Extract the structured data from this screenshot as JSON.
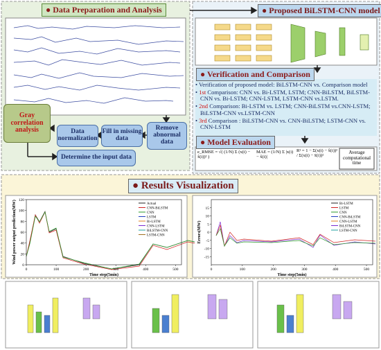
{
  "data_preparation": {
    "title": "Data Preparation and Analysis",
    "steps": {
      "gray": "Gray correlation analysis",
      "normalization": "Data normalization",
      "fill": "Fill in missing data",
      "remove": "Remove abnormal data",
      "determine": "Determine the input data"
    }
  },
  "model": {
    "title": "Proposed BiLSTM-CNN model"
  },
  "verification": {
    "title": "Verification and Comparison",
    "items": [
      {
        "label": "",
        "text": "Verification of proposed model: BiLSTM-CNN vs. Comparison model"
      },
      {
        "label": "1st",
        "text": "Comparison: CNN vs. Bi-LSTM, LSTM; CNN-BiLSTM, BiLSTM-CNN vs. Bi-LSTM;  CNN-LSTM, LSTM-CNN vs.LSTM."
      },
      {
        "label": "2nd",
        "text": "Comparison: Bi-LSTM vs. LSTM; CNN-BiLSTM vs.CNN-LSTM; BiLSTM-CNN vs.LSTM-CNN"
      },
      {
        "label": "3rd",
        "text": "Comparison : BiLSTM-CNN vs. CNN-BiLSTM; LSTM-CNN vs. CNN-LSTM"
      }
    ]
  },
  "evaluation": {
    "title": "Model Evaluation",
    "formulas": [
      "e_RMSE = √( (1/N) Σ (x(i) − x̂(i))² )",
      "MAE = (1/N) Σ |x(i) − x̂(i)|",
      "R² = 1 − Σ(x(i) − x̂(i))² / Σ(x(i) − x̄(i))²"
    ],
    "time": "Average computational time"
  },
  "results": {
    "title": "Results Visualization",
    "left_chart": {
      "ylabel": "Wind power output prediction(MW)",
      "xlabel": "Time step(5min)",
      "legend": [
        "Actual",
        "CNN-BiLSTM",
        "CNN",
        "LSTM",
        "Bi-LSTM",
        "CNN-LSTM",
        "BiLSTM-CNN",
        "LSTM-CNN"
      ],
      "xlim": [
        0,
        520
      ],
      "xticks": [
        0,
        100,
        200,
        300,
        400,
        500
      ],
      "ylim": [
        0,
        120
      ],
      "yticks": [
        0,
        20,
        40,
        60,
        80,
        100,
        120
      ]
    },
    "right_chart": {
      "ylabel": "Errors(MW)",
      "xlabel": "Time step(5min)",
      "legend": [
        "Bi-LSTM",
        "LSTM",
        "CNN",
        "CNN-BiLSTM",
        "CNN-LSTM",
        "BiLSTM-CNN",
        "LSTM-CNN"
      ],
      "xlim": [
        0,
        520
      ],
      "xticks": [
        0,
        100,
        200,
        300,
        400,
        500
      ],
      "ylim": [
        -20,
        20
      ],
      "yticks": [
        -15,
        -10,
        -5,
        0,
        5,
        10,
        15
      ]
    }
  }
}
